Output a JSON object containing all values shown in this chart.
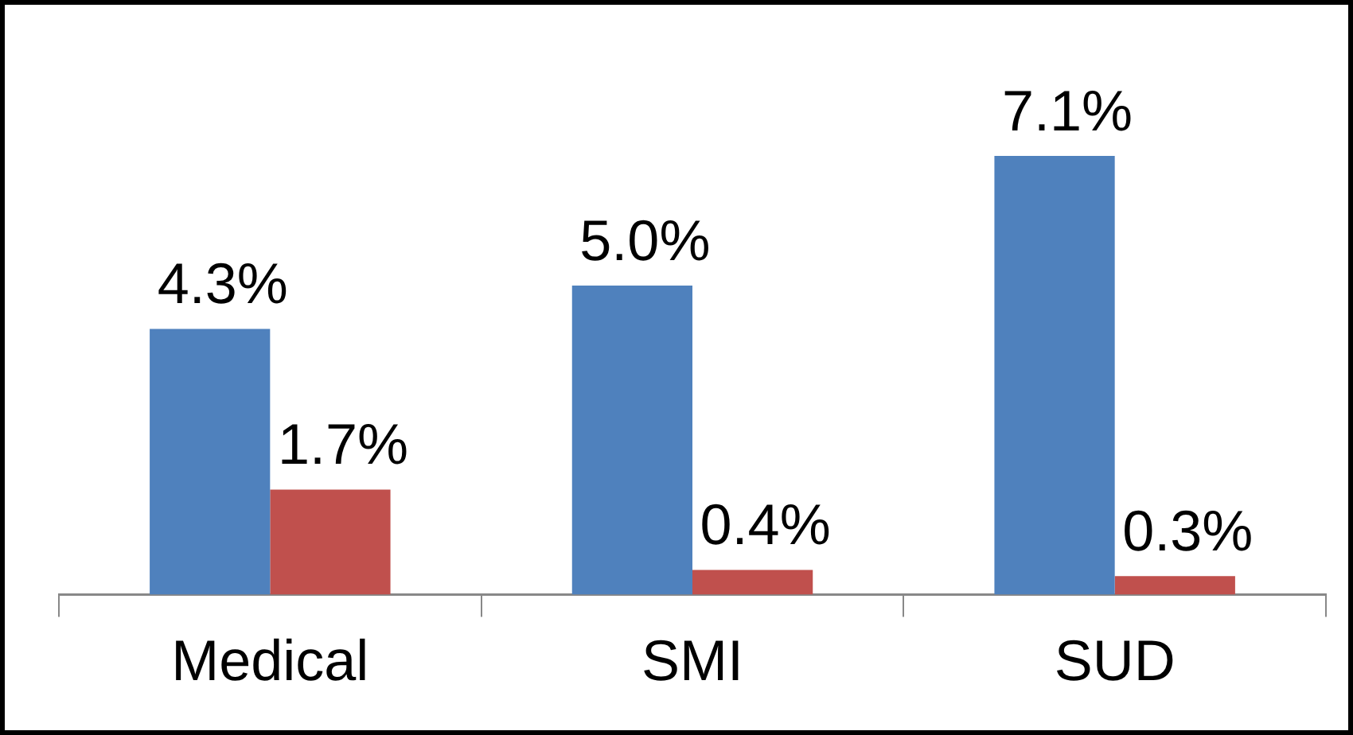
{
  "chart_data": {
    "type": "bar",
    "categories": [
      "Medical",
      "SMI",
      "SUD"
    ],
    "series": [
      {
        "color": "#4f81bd",
        "values": [
          4.3,
          5.0,
          7.1
        ],
        "value_labels": [
          "4.3%",
          "5.0%",
          "7.1%"
        ]
      },
      {
        "color": "#c0504d",
        "values": [
          1.7,
          0.4,
          0.3
        ],
        "value_labels": [
          "1.7%",
          "0.4%",
          "0.3%"
        ]
      }
    ],
    "grid": false,
    "legend": false,
    "tick_labels": "x"
  }
}
